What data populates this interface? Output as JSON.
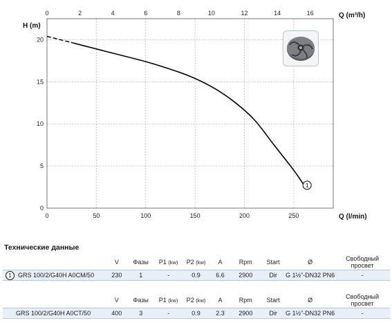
{
  "chart_data": {
    "type": "line",
    "xlabel_top": "Q (m³/h)",
    "xlabel_bottom": "Q (l/min)",
    "ylabel": "H (m)",
    "x_bottom_ticks": [
      "0",
      "50",
      "100",
      "150",
      "200",
      "250"
    ],
    "x_top_ticks": [
      "0",
      "2",
      "4",
      "6",
      "8",
      "10",
      "12",
      "14",
      "16"
    ],
    "y_ticks": [
      "0",
      "5",
      "10",
      "15",
      "20"
    ],
    "xlim_bottom": [
      0,
      290
    ],
    "xlim_top": [
      0,
      17.4
    ],
    "ylim": [
      0,
      22.5
    ],
    "grid": true,
    "series": [
      {
        "marker_label": "1",
        "dashed_points": [
          [
            0,
            20.4
          ],
          [
            27,
            19.6
          ]
        ],
        "points": [
          [
            27,
            19.6
          ],
          [
            60,
            18.6
          ],
          [
            100,
            17.4
          ],
          [
            130,
            16.3
          ],
          [
            150,
            15.4
          ],
          [
            170,
            14.2
          ],
          [
            190,
            12.6
          ],
          [
            210,
            10.5
          ],
          [
            230,
            7.5
          ],
          [
            250,
            4.5
          ],
          [
            260,
            2.8
          ]
        ]
      }
    ]
  },
  "impeller_icon": "impeller-image",
  "specs": {
    "title": "Технические данные",
    "headers": [
      "V",
      "Фазы",
      "P1",
      "(kw)",
      "P2",
      "(kw)",
      "A",
      "Rpm",
      "Start",
      "Ø",
      "Свободный",
      "просвет"
    ],
    "rows": [
      {
        "num": "1",
        "model": "GRS 100/2/G40H A0CM/50",
        "v": "230",
        "phases": "1",
        "p1": "-",
        "p2": "0.9",
        "a": "6.6",
        "rpm": "2900",
        "start": "Dir",
        "diameter": "G 1½”-DN32 PN6",
        "passage": "-"
      },
      {
        "model": "GRS 100/2/G40H A0CT/50",
        "v": "400",
        "phases": "3",
        "p1": "-",
        "p2": "0.9",
        "a": "2.3",
        "rpm": "2900",
        "start": "Dir",
        "diameter": "G 1½”-DN32 PN6",
        "passage": "-"
      }
    ]
  }
}
